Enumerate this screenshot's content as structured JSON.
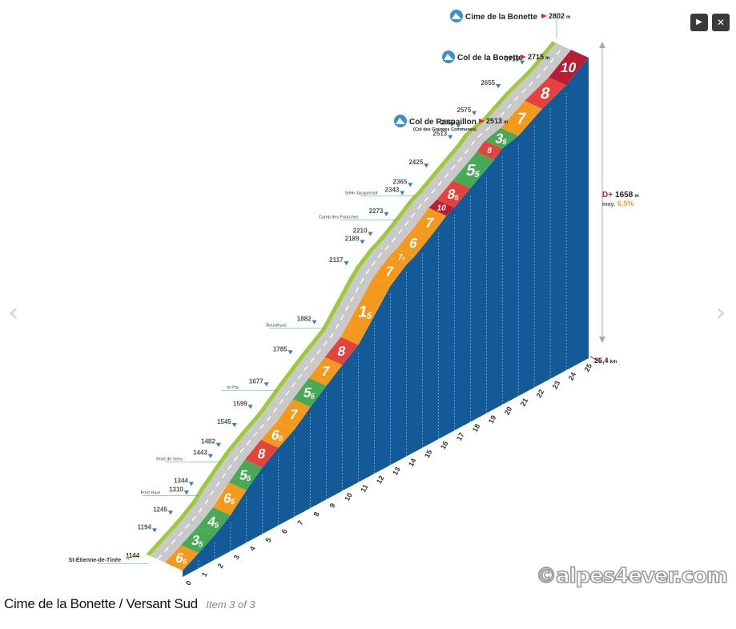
{
  "caption": {
    "title": "Cime de la Bonette / Versant Sud",
    "counter": "Item 3 of 3"
  },
  "controls": {
    "play_icon": "play-icon",
    "close_icon": "close-icon",
    "play_glyph": "▶",
    "close_glyph": "✕",
    "prev_glyph": "‹",
    "next_glyph": "›"
  },
  "watermark": "©alpes4ever.com",
  "colors": {
    "hill": "#125a98",
    "road": "#c9c9c9",
    "verge": "#9fc93c",
    "grade_3": "#4aa957",
    "grade_5": "#4aa957",
    "grade_6": "#f39a1e",
    "grade_7": "#f39a1e",
    "grade_8": "#e2433c",
    "grade_10": "#b81e33",
    "accent_red": "#e2203b",
    "pink": "#d4146f",
    "orange": "#f0a020"
  },
  "chart_data": {
    "type": "area",
    "title": "",
    "xlabel": "",
    "ylabel": "",
    "xlim": [
      0,
      25.4
    ],
    "ylim": [
      1144,
      2802
    ],
    "x_ticks": [
      "0",
      "1",
      "2",
      "3",
      "4",
      "5",
      "6",
      "7",
      "8",
      "9",
      "10",
      "11",
      "12",
      "13",
      "14",
      "15",
      "16",
      "17",
      "18",
      "19",
      "20",
      "21",
      "22",
      "23",
      "24",
      "25"
    ],
    "profile": [
      {
        "km": 0,
        "alt": 1144
      },
      {
        "km": 1,
        "alt": 1194
      },
      {
        "km": 2,
        "alt": 1245
      },
      {
        "km": 3,
        "alt": 1310
      },
      {
        "km": 3.3,
        "alt": 1344
      },
      {
        "km": 4.5,
        "alt": 1443
      },
      {
        "km": 5,
        "alt": 1482
      },
      {
        "km": 6,
        "alt": 1545
      },
      {
        "km": 7,
        "alt": 1599
      },
      {
        "km": 8,
        "alt": 1677
      },
      {
        "km": 9.5,
        "alt": 1785
      },
      {
        "km": 11,
        "alt": 1882
      },
      {
        "km": 13,
        "alt": 2117
      },
      {
        "km": 14,
        "alt": 2189
      },
      {
        "km": 14.5,
        "alt": 2210
      },
      {
        "km": 15.5,
        "alt": 2273
      },
      {
        "km": 16.5,
        "alt": 2343
      },
      {
        "km": 17,
        "alt": 2365
      },
      {
        "km": 18,
        "alt": 2425
      },
      {
        "km": 19.5,
        "alt": 2513
      },
      {
        "km": 20,
        "alt": 2552
      },
      {
        "km": 21,
        "alt": 2575
      },
      {
        "km": 22.5,
        "alt": 2655
      },
      {
        "km": 24,
        "alt": 2715
      },
      {
        "km": 25.4,
        "alt": 2802
      }
    ],
    "segments": [
      {
        "from": 0,
        "to": 1,
        "label": "6",
        "sub": "5",
        "color": "#f39a1e"
      },
      {
        "from": 1,
        "to": 2,
        "label": "3",
        "sub": "5",
        "color": "#4aa957"
      },
      {
        "from": 2,
        "to": 3,
        "label": "4",
        "sub": "5",
        "color": "#4aa957"
      },
      {
        "from": 3,
        "to": 4,
        "label": "6",
        "sub": "5",
        "color": "#f39a1e"
      },
      {
        "from": 4,
        "to": 5,
        "label": "5",
        "sub": "5",
        "color": "#4aa957"
      },
      {
        "from": 5,
        "to": 6,
        "label": "8",
        "sub": "",
        "color": "#e2433c"
      },
      {
        "from": 6,
        "to": 7,
        "label": "6",
        "sub": "5",
        "color": "#f39a1e"
      },
      {
        "from": 7,
        "to": 8,
        "label": "7",
        "sub": "",
        "color": "#f39a1e"
      },
      {
        "from": 8,
        "to": 9,
        "label": "5",
        "sub": "5",
        "color": "#4aa957"
      },
      {
        "from": 9,
        "to": 10,
        "label": "7",
        "sub": "",
        "color": "#f39a1e"
      },
      {
        "from": 10,
        "to": 11,
        "label": "8",
        "sub": "",
        "color": "#e2433c"
      },
      {
        "from": 11,
        "to": 13,
        "label": "1",
        "sub": "5",
        "color": "#f39a1e"
      },
      {
        "from": 13,
        "to": 14,
        "label": "7",
        "sub": "",
        "color": "#f39a1e"
      },
      {
        "from": 14,
        "to": 14.5,
        "label": "7",
        "sub": "5",
        "color": "#f39a1e"
      },
      {
        "from": 14.5,
        "to": 15.5,
        "label": "6",
        "sub": "",
        "color": "#f39a1e"
      },
      {
        "from": 15.5,
        "to": 16.5,
        "label": "7",
        "sub": "",
        "color": "#f39a1e"
      },
      {
        "from": 16.5,
        "to": 17,
        "label": "10",
        "sub": "",
        "color": "#b81e33"
      },
      {
        "from": 17,
        "to": 18,
        "label": "8",
        "sub": "5",
        "color": "#e2433c"
      },
      {
        "from": 18,
        "to": 19.5,
        "label": "5",
        "sub": "5",
        "color": "#4aa957"
      },
      {
        "from": 19.5,
        "to": 20,
        "label": "8",
        "sub": "",
        "color": "#e2433c"
      },
      {
        "from": 20,
        "to": 21,
        "label": "3",
        "sub": "5",
        "color": "#4aa957"
      },
      {
        "from": 21,
        "to": 22.5,
        "label": "7",
        "sub": "",
        "color": "#f39a1e"
      },
      {
        "from": 22.5,
        "to": 24,
        "label": "8",
        "sub": "",
        "color": "#e2433c"
      },
      {
        "from": 24,
        "to": 25.4,
        "label": "10",
        "sub": "",
        "color": "#b81e33"
      }
    ],
    "altitude_labels": [
      "1144",
      "1194",
      "1245",
      "1310",
      "1344",
      "1443",
      "1482",
      "1545",
      "1599",
      "1677",
      "1785",
      "1882",
      "2117",
      "2189",
      "2210",
      "2273",
      "2343",
      "2365",
      "2425",
      "2513",
      "2552",
      "2575",
      "2655",
      "2715",
      "2802"
    ],
    "place_labels": [
      {
        "km": 0,
        "text": "St-Étienne-de-Tinée"
      },
      {
        "km": 3.1,
        "text": "Pont Haut"
      },
      {
        "km": 4.5,
        "text": "Pont de Vens"
      },
      {
        "km": 8,
        "text": "le Pra"
      },
      {
        "km": 11,
        "text": "Bousiéyas"
      },
      {
        "km": 15.5,
        "text": "Camp des Fourches"
      },
      {
        "km": 16.7,
        "text": "Stèle Jacquemot"
      }
    ],
    "summits": [
      {
        "name": "Col de Raspaillon",
        "sub": "(Col des Granges Communes)",
        "alt": "2513",
        "unit": "m"
      },
      {
        "name": "Col de la Bonette",
        "sub": "",
        "alt": "2715",
        "unit": "m"
      },
      {
        "name": "Cime de la Bonette",
        "sub": "",
        "alt": "2802",
        "unit": "m"
      }
    ],
    "distance": {
      "value": "25,4",
      "unit": "km"
    },
    "gain": {
      "prefix": "D+",
      "value": "1658",
      "unit": "m",
      "avg_label": "moy.",
      "avg_value": "6,5%"
    }
  }
}
